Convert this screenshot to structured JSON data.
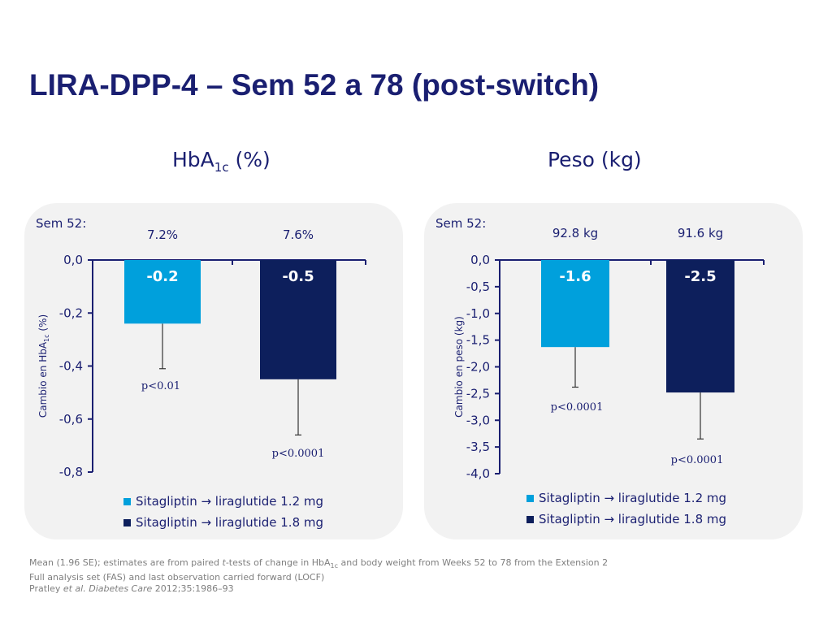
{
  "title": "LIRA-DPP-4 – Sem 52 a 78 (post-switch)",
  "colors": {
    "series1": "#00a0dc",
    "series2": "#0d1f5c",
    "text": "#1a1f71"
  },
  "panels": [
    {
      "title_main": "HbA",
      "title_sub": "1c",
      "title_rest": " (%)",
      "baseline_label": "Sem 52:",
      "legend": [
        "Sitagliptin → liraglutide 1.2 mg",
        "Sitagliptin → liraglutide 1.8 mg"
      ]
    },
    {
      "title_main": "Peso (kg)",
      "title_sub": "",
      "title_rest": "",
      "baseline_label": "Sem 52:",
      "legend": [
        "Sitagliptin → liraglutide 1.2 mg",
        "Sitagliptin → liraglutide 1.8 mg"
      ]
    }
  ],
  "chart_data": [
    {
      "type": "bar",
      "categories": [
        "Sitagliptin → liraglutide 1.2 mg",
        "Sitagliptin → liraglutide 1.8 mg"
      ],
      "values": [
        -0.24,
        -0.45
      ],
      "value_labels": [
        "-0.2",
        "-0.5"
      ],
      "error_low": [
        -0.41,
        -0.66
      ],
      "baseline_values": [
        "7.2%",
        "7.6%"
      ],
      "p_values": [
        "p<0.01",
        "p<0.0001"
      ],
      "ylabel_main": "Cambio en HbA",
      "ylabel_sub": "1c",
      "ylabel_rest": " (%)",
      "ylim": [
        -0.8,
        0
      ],
      "yticks": [
        0,
        -0.2,
        -0.4,
        -0.6,
        -0.8
      ],
      "ytick_labels": [
        "0,0",
        "-0,2",
        "-0,4",
        "-0,6",
        "-0,8"
      ],
      "grid": false
    },
    {
      "type": "bar",
      "categories": [
        "Sitagliptin → liraglutide 1.2 mg",
        "Sitagliptin → liraglutide 1.8 mg"
      ],
      "values": [
        -1.63,
        -2.48
      ],
      "value_labels": [
        "-1.6",
        "-2.5"
      ],
      "error_low": [
        -2.38,
        -3.35
      ],
      "baseline_values": [
        "92.8 kg",
        "91.6 kg"
      ],
      "p_values": [
        "p<0.0001",
        "p<0.0001"
      ],
      "ylabel_main": "Cambio en peso (kg)",
      "ylabel_sub": "",
      "ylabel_rest": "",
      "ylim": [
        -4.0,
        0
      ],
      "yticks": [
        0,
        -0.5,
        -1.0,
        -1.5,
        -2.0,
        -2.5,
        -3.0,
        -3.5,
        -4.0
      ],
      "ytick_labels": [
        "0,0",
        "-0,5",
        "-1,0",
        "-1,5",
        "-2,0",
        "-2,5",
        "-3,0",
        "-3,5",
        "-4,0"
      ],
      "grid": false
    }
  ],
  "footnotes": {
    "line1_a": "Mean (1.96 SE); estimates are from paired ",
    "line1_t": "t",
    "line1_b": "-tests of change in HbA",
    "line1_sub": "1c",
    "line1_c": " and body weight from Weeks 52 to 78 from the Extension 2",
    "line2": "Full analysis set (FAS) and last observation carried forward (LOCF)",
    "line3_a": "Pratley ",
    "line3_etal": "et al. Diabetes Care",
    "line3_b": " 2012;35:1986–93"
  }
}
